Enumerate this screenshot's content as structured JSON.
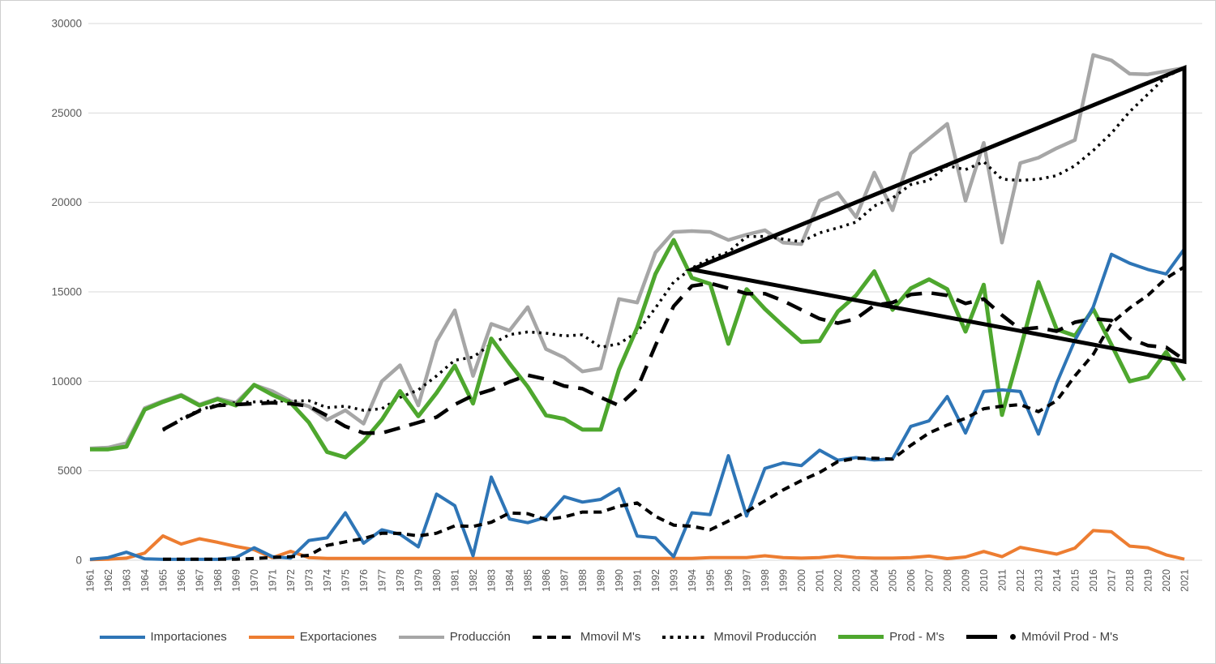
{
  "chart_data": {
    "type": "line",
    "title": "",
    "xlabel": "",
    "ylabel": "",
    "grid": "horizontal",
    "legend_position": "bottom",
    "ylim": [
      0,
      30000
    ],
    "yticks": [
      0,
      5000,
      10000,
      15000,
      20000,
      25000,
      30000
    ],
    "x": [
      1961,
      1962,
      1963,
      1964,
      1965,
      1966,
      1967,
      1968,
      1969,
      1970,
      1971,
      1972,
      1973,
      1974,
      1975,
      1976,
      1977,
      1978,
      1979,
      1980,
      1981,
      1982,
      1983,
      1984,
      1985,
      1986,
      1987,
      1988,
      1989,
      1990,
      1991,
      1992,
      1993,
      1994,
      1995,
      1996,
      1997,
      1998,
      1999,
      2000,
      2001,
      2002,
      2003,
      2004,
      2005,
      2006,
      2007,
      2008,
      2009,
      2010,
      2011,
      2012,
      2013,
      2014,
      2015,
      2016,
      2017,
      2018,
      2019,
      2020,
      2021
    ],
    "series": [
      {
        "name": "Importaciones",
        "color": "#2E75B6",
        "style": "solid",
        "width": 4,
        "values": [
          50,
          150,
          450,
          80,
          50,
          50,
          50,
          50,
          150,
          700,
          200,
          120,
          1100,
          1250,
          2650,
          950,
          1700,
          1450,
          750,
          3700,
          3050,
          250,
          4650,
          2300,
          2100,
          2400,
          3550,
          3250,
          3400,
          4000,
          1350,
          1250,
          200,
          2650,
          2550,
          5840,
          2470,
          5130,
          5440,
          5290,
          6150,
          5590,
          5740,
          5600,
          5660,
          7480,
          7790,
          9150,
          7110,
          9430,
          9520,
          9430,
          7050,
          9900,
          12300,
          14150,
          17100,
          16600,
          16250,
          16000,
          17400
        ]
      },
      {
        "name": "Exportaciones",
        "color": "#ED7D31",
        "style": "solid",
        "width": 4,
        "values": [
          30,
          60,
          120,
          400,
          1360,
          900,
          1200,
          1000,
          770,
          590,
          140,
          500,
          150,
          100,
          100,
          100,
          100,
          100,
          100,
          100,
          100,
          100,
          100,
          100,
          100,
          100,
          100,
          100,
          100,
          100,
          100,
          100,
          100,
          100,
          150,
          150,
          150,
          250,
          150,
          120,
          150,
          250,
          150,
          120,
          120,
          150,
          230,
          90,
          180,
          490,
          200,
          720,
          530,
          340,
          680,
          1660,
          1590,
          790,
          700,
          300,
          60
        ]
      },
      {
        "name": "Producción",
        "color": "#A6A6A6",
        "style": "solid",
        "width": 4.5,
        "values": [
          6250,
          6300,
          6550,
          8500,
          8900,
          9250,
          8700,
          9050,
          8800,
          9800,
          9450,
          8900,
          8600,
          7850,
          8380,
          7630,
          10000,
          10900,
          8650,
          12230,
          13970,
          10300,
          13210,
          12840,
          14150,
          11800,
          11330,
          10550,
          10720,
          14600,
          14400,
          17200,
          18350,
          18400,
          18350,
          17900,
          18200,
          18450,
          17750,
          17670,
          20100,
          20540,
          19180,
          21670,
          19560,
          22730,
          23560,
          24390,
          20090,
          23330,
          17750,
          22200,
          22500,
          23030,
          23490,
          28240,
          27940,
          27190,
          27160,
          27340,
          27520
        ]
      },
      {
        "name": "Mmovil M's",
        "color": "#000000",
        "style": "shortdash",
        "width": 4,
        "values": [
          null,
          null,
          null,
          null,
          60,
          60,
          60,
          60,
          60,
          100,
          150,
          200,
          270,
          830,
          1030,
          1210,
          1510,
          1500,
          1360,
          1510,
          1920,
          1890,
          2120,
          2640,
          2600,
          2270,
          2420,
          2690,
          2690,
          3020,
          3200,
          2450,
          1960,
          1900,
          1700,
          2190,
          2720,
          3320,
          3930,
          4450,
          4910,
          5510,
          5700,
          5700,
          5650,
          6420,
          7110,
          7560,
          7930,
          8470,
          8610,
          8700,
          8300,
          8920,
          10300,
          11500,
          13250,
          14100,
          14810,
          15760,
          16400
        ]
      },
      {
        "name": "Mmovil Producción",
        "color": "#000000",
        "style": "dot",
        "width": 3.5,
        "values": [
          null,
          null,
          null,
          null,
          7250,
          7900,
          8400,
          8700,
          8800,
          8850,
          8900,
          8900,
          8920,
          8530,
          8610,
          8380,
          8470,
          9100,
          9520,
          10300,
          11180,
          11350,
          12080,
          12610,
          12760,
          12690,
          12540,
          12600,
          11900,
          12100,
          12750,
          14100,
          15550,
          16330,
          16870,
          17220,
          18090,
          18100,
          17950,
          17800,
          18300,
          18580,
          18900,
          19800,
          20250,
          21000,
          21230,
          22050,
          21830,
          22280,
          21300,
          21230,
          21300,
          21500,
          22050,
          22900,
          23870,
          25070,
          26050,
          27040,
          27500
        ]
      },
      {
        "name": "Prod - M's",
        "color": "#4EA72E",
        "style": "solid",
        "width": 5,
        "values": [
          6200,
          6200,
          6350,
          8420,
          8850,
          9200,
          8650,
          9000,
          8650,
          9800,
          9250,
          8800,
          7700,
          6050,
          5750,
          6650,
          7850,
          9450,
          8050,
          9350,
          10870,
          8760,
          12390,
          11000,
          9700,
          8100,
          7900,
          7300,
          7300,
          10650,
          13000,
          16000,
          17900,
          15780,
          15450,
          12100,
          15150,
          14050,
          13100,
          12200,
          12250,
          13900,
          14800,
          16150,
          14000,
          15200,
          15700,
          15150,
          12780,
          15400,
          8120,
          11780,
          15550,
          12900,
          12550,
          14050,
          12050,
          10000,
          10250,
          11640,
          10050
        ]
      },
      {
        "name": "Mmóvil Prod - M's",
        "color": "#000000",
        "style": "longdash",
        "width": 4.5,
        "values": [
          null,
          null,
          null,
          null,
          7300,
          7850,
          8350,
          8650,
          8700,
          8750,
          8800,
          8750,
          8610,
          8080,
          7480,
          7110,
          7110,
          7400,
          7700,
          8000,
          8700,
          9210,
          9520,
          9970,
          10340,
          10120,
          9740,
          9590,
          9100,
          8650,
          9600,
          12000,
          14200,
          15330,
          15480,
          15200,
          14900,
          14900,
          14500,
          14000,
          13500,
          13250,
          13500,
          14250,
          14400,
          14850,
          14950,
          14800,
          14350,
          14600,
          13700,
          12900,
          13000,
          12800,
          13300,
          13500,
          13400,
          12400,
          12000,
          11900,
          11200
        ]
      }
    ],
    "annotation_triangle": {
      "color": "#000000",
      "width": 5,
      "apex": {
        "year": 1994,
        "value": 16250
      },
      "top_right": {
        "year": 2021,
        "value": 27520
      },
      "bottom_right": {
        "year": 2021,
        "value": 11100
      }
    },
    "axis_text_color": "#595959",
    "gridline_color": "#D9D9D9"
  }
}
